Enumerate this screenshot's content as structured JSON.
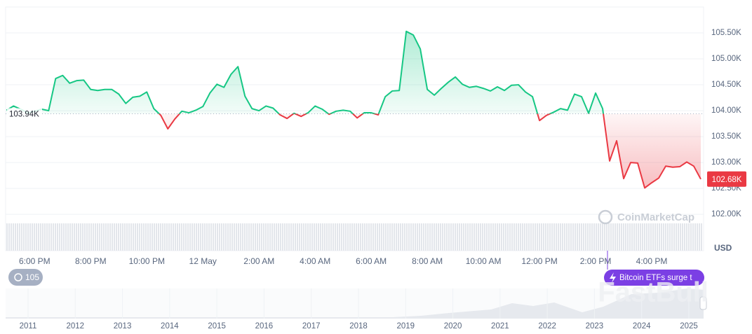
{
  "chart_data": {
    "type": "line",
    "currency_label": "USD",
    "up_color": "#16c784",
    "down_color": "#ea3943",
    "xlim": [
      1018,
      2511
    ],
    "xticks": [
      {
        "value": 1080,
        "label": "6:00 PM"
      },
      {
        "value": 1200,
        "label": "8:00 PM"
      },
      {
        "value": 1320,
        "label": "10:00 PM"
      },
      {
        "value": 1440,
        "label": "12 May"
      },
      {
        "value": 1560,
        "label": "2:00 AM"
      },
      {
        "value": 1680,
        "label": "4:00 AM"
      },
      {
        "value": 1800,
        "label": "6:00 AM"
      },
      {
        "value": 1920,
        "label": "8:00 AM"
      },
      {
        "value": 2040,
        "label": "10:00 AM"
      },
      {
        "value": 2160,
        "label": "12:00 PM"
      },
      {
        "value": 2280,
        "label": "2:00 PM"
      },
      {
        "value": 2400,
        "label": "4:00 PM"
      }
    ],
    "ylim": [
      101840,
      106000
    ],
    "yticks": [
      {
        "value": 102000,
        "label": "102.00K"
      },
      {
        "value": 102500,
        "label": "102.50K"
      },
      {
        "value": 103000,
        "label": "103.00K"
      },
      {
        "value": 103500,
        "label": "103.50K"
      },
      {
        "value": 104000,
        "label": "104.00K"
      },
      {
        "value": 104500,
        "label": "104.50K"
      },
      {
        "value": 105000,
        "label": "105.00K"
      },
      {
        "value": 105500,
        "label": "105.50K"
      }
    ],
    "grid": true,
    "baseline": {
      "value": 103940,
      "label": "103.94K"
    },
    "current_price_label": "102.68K",
    "x": [
      1020,
      1035,
      1050,
      1065,
      1080,
      1095,
      1110,
      1125,
      1140,
      1155,
      1170,
      1185,
      1200,
      1215,
      1230,
      1245,
      1260,
      1275,
      1290,
      1305,
      1320,
      1335,
      1350,
      1365,
      1380,
      1395,
      1410,
      1425,
      1440,
      1455,
      1470,
      1485,
      1500,
      1515,
      1530,
      1545,
      1560,
      1575,
      1590,
      1605,
      1620,
      1635,
      1650,
      1665,
      1680,
      1695,
      1710,
      1725,
      1740,
      1755,
      1770,
      1785,
      1800,
      1815,
      1830,
      1845,
      1860,
      1875,
      1890,
      1905,
      1920,
      1935,
      1950,
      1965,
      1980,
      1995,
      2010,
      2025,
      2040,
      2055,
      2070,
      2085,
      2100,
      2115,
      2130,
      2145,
      2160,
      2175,
      2190,
      2205,
      2220,
      2235,
      2250,
      2265,
      2280,
      2295,
      2310,
      2325,
      2340,
      2355,
      2370,
      2385,
      2400,
      2415,
      2430,
      2445,
      2460,
      2475,
      2490,
      2505
    ],
    "values": [
      104010,
      104090,
      104030,
      103960,
      103990,
      104030,
      104000,
      104620,
      104680,
      104530,
      104580,
      104590,
      104410,
      104390,
      104410,
      104410,
      104320,
      104140,
      104260,
      104280,
      104360,
      104040,
      103910,
      103650,
      103840,
      103990,
      103960,
      104010,
      104080,
      104340,
      104510,
      104450,
      104700,
      104850,
      104280,
      104040,
      104000,
      104090,
      104050,
      103920,
      103850,
      103950,
      103890,
      103960,
      104090,
      104030,
      103930,
      103990,
      104010,
      103990,
      103860,
      103960,
      103960,
      103920,
      104270,
      104380,
      104390,
      105530,
      105460,
      105190,
      104410,
      104300,
      104430,
      104550,
      104650,
      104510,
      104450,
      104470,
      104430,
      104380,
      104460,
      104390,
      104490,
      104500,
      104360,
      104270,
      103810,
      103910,
      103970,
      104040,
      104010,
      104320,
      104270,
      103950,
      104340,
      104040,
      103030,
      103420,
      102690,
      103000,
      102990,
      102510,
      102610,
      102700,
      102930,
      102910,
      102920,
      103010,
      102930,
      102680
    ],
    "history_badge": "105",
    "event_badge": "Bitcoin ETFs surge t",
    "navigator_labels": [
      "2011",
      "2012",
      "2013",
      "2014",
      "2015",
      "2016",
      "2017",
      "2018",
      "2019",
      "2020",
      "2021",
      "2022",
      "2023",
      "2024",
      "2025"
    ],
    "watermark": "CoinMarketCap",
    "watermark_2": "FastBull"
  }
}
